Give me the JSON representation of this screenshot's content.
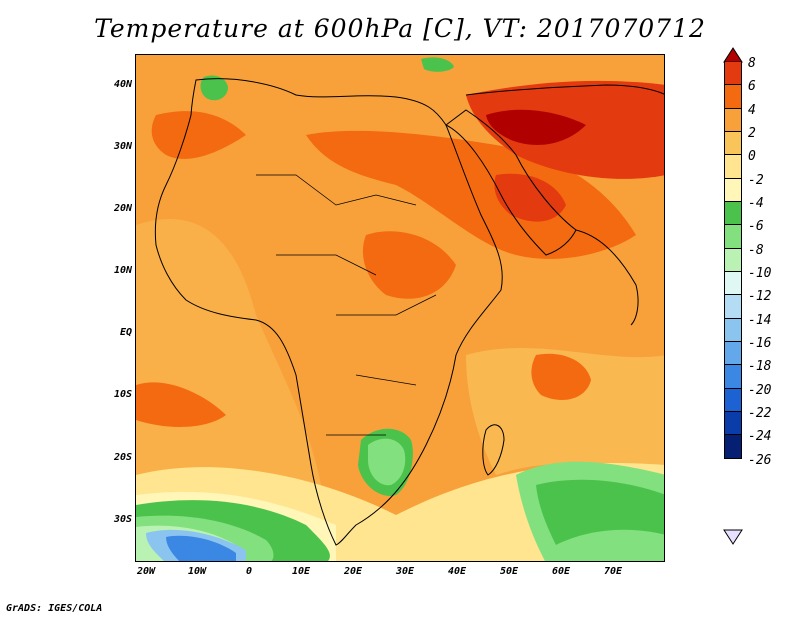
{
  "title": "Temperature at 600hPa [C], VT: 2017070712",
  "credit": "GrADS: IGES/COLA",
  "map": {
    "lat_labels": [
      "40N",
      "30N",
      "20N",
      "10N",
      "EQ",
      "10S",
      "20S",
      "30S"
    ],
    "lon_labels": [
      "20W",
      "10W",
      "0",
      "10E",
      "20E",
      "30E",
      "40E",
      "50E",
      "60E",
      "70E"
    ]
  },
  "colorbar": {
    "labels": [
      "8",
      "6",
      "4",
      "2",
      "0",
      "-2",
      "-4",
      "-6",
      "-8",
      "-10",
      "-12",
      "-14",
      "-16",
      "-18",
      "-20",
      "-22",
      "-24",
      "-26"
    ],
    "colors": [
      "#b10000",
      "#e43a0f",
      "#f46a10",
      "#f8a13b",
      "#f9c55a",
      "#ffe58f",
      "#fff6b8",
      "#4bc24b",
      "#82e07f",
      "#b9f2b2",
      "#e0f8f4",
      "#b4dcf4",
      "#8cc4f0",
      "#64a8ec",
      "#3b88e4",
      "#1c62d2",
      "#0a3caa",
      "#052073"
    ]
  }
}
